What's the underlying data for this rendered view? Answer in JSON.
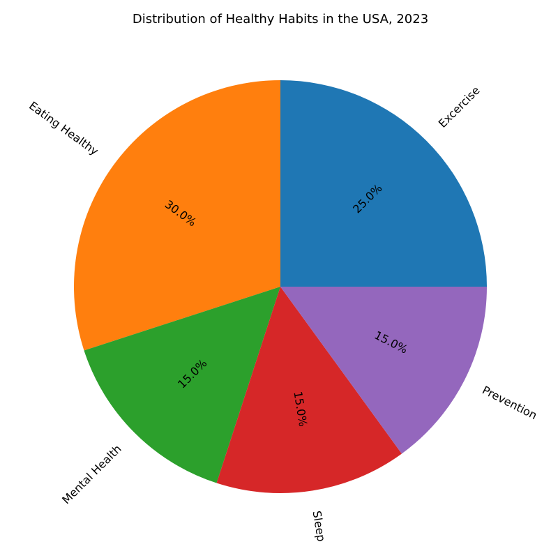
{
  "chart_data": {
    "type": "pie",
    "title": "Distribution of Healthy Habits in the USA, 2023",
    "categories": [
      "Excercise",
      "Eating Healthy",
      "Mental Health",
      "Sleep",
      "Prevention"
    ],
    "values": [
      25,
      30,
      15,
      15,
      15
    ],
    "percent_labels": [
      "25.0%",
      "30.0%",
      "15.0%",
      "15.0%",
      "15.0%"
    ],
    "colors": [
      "#1f77b4",
      "#ff7f0e",
      "#2ca02c",
      "#d62728",
      "#9467bd"
    ],
    "start_angle_deg": 0,
    "direction": "counterclockwise",
    "legend": "none"
  }
}
